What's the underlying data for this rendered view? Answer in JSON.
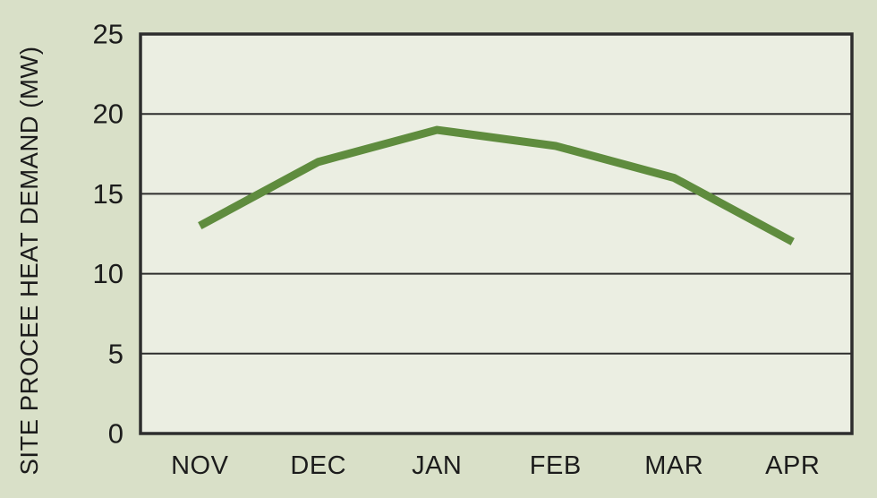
{
  "chart_data": {
    "type": "line",
    "categories": [
      "NOV",
      "DEC",
      "JAN",
      "FEB",
      "MAR",
      "APR"
    ],
    "values": [
      13,
      17,
      19,
      18,
      16,
      12
    ],
    "title": "",
    "xlabel": "",
    "ylabel": "SITE PROCEE HEAT DEMAND (MW)",
    "ylim": [
      0,
      25
    ],
    "yticks": [
      0,
      5,
      10,
      15,
      20,
      25
    ],
    "grid": true,
    "legend": false,
    "colors": {
      "page_bg": "#d9e0c8",
      "plot_bg": "#ebeee2",
      "line": "#5f8c3e",
      "axis": "#2d2d2d",
      "text": "#1c1c1c"
    }
  }
}
